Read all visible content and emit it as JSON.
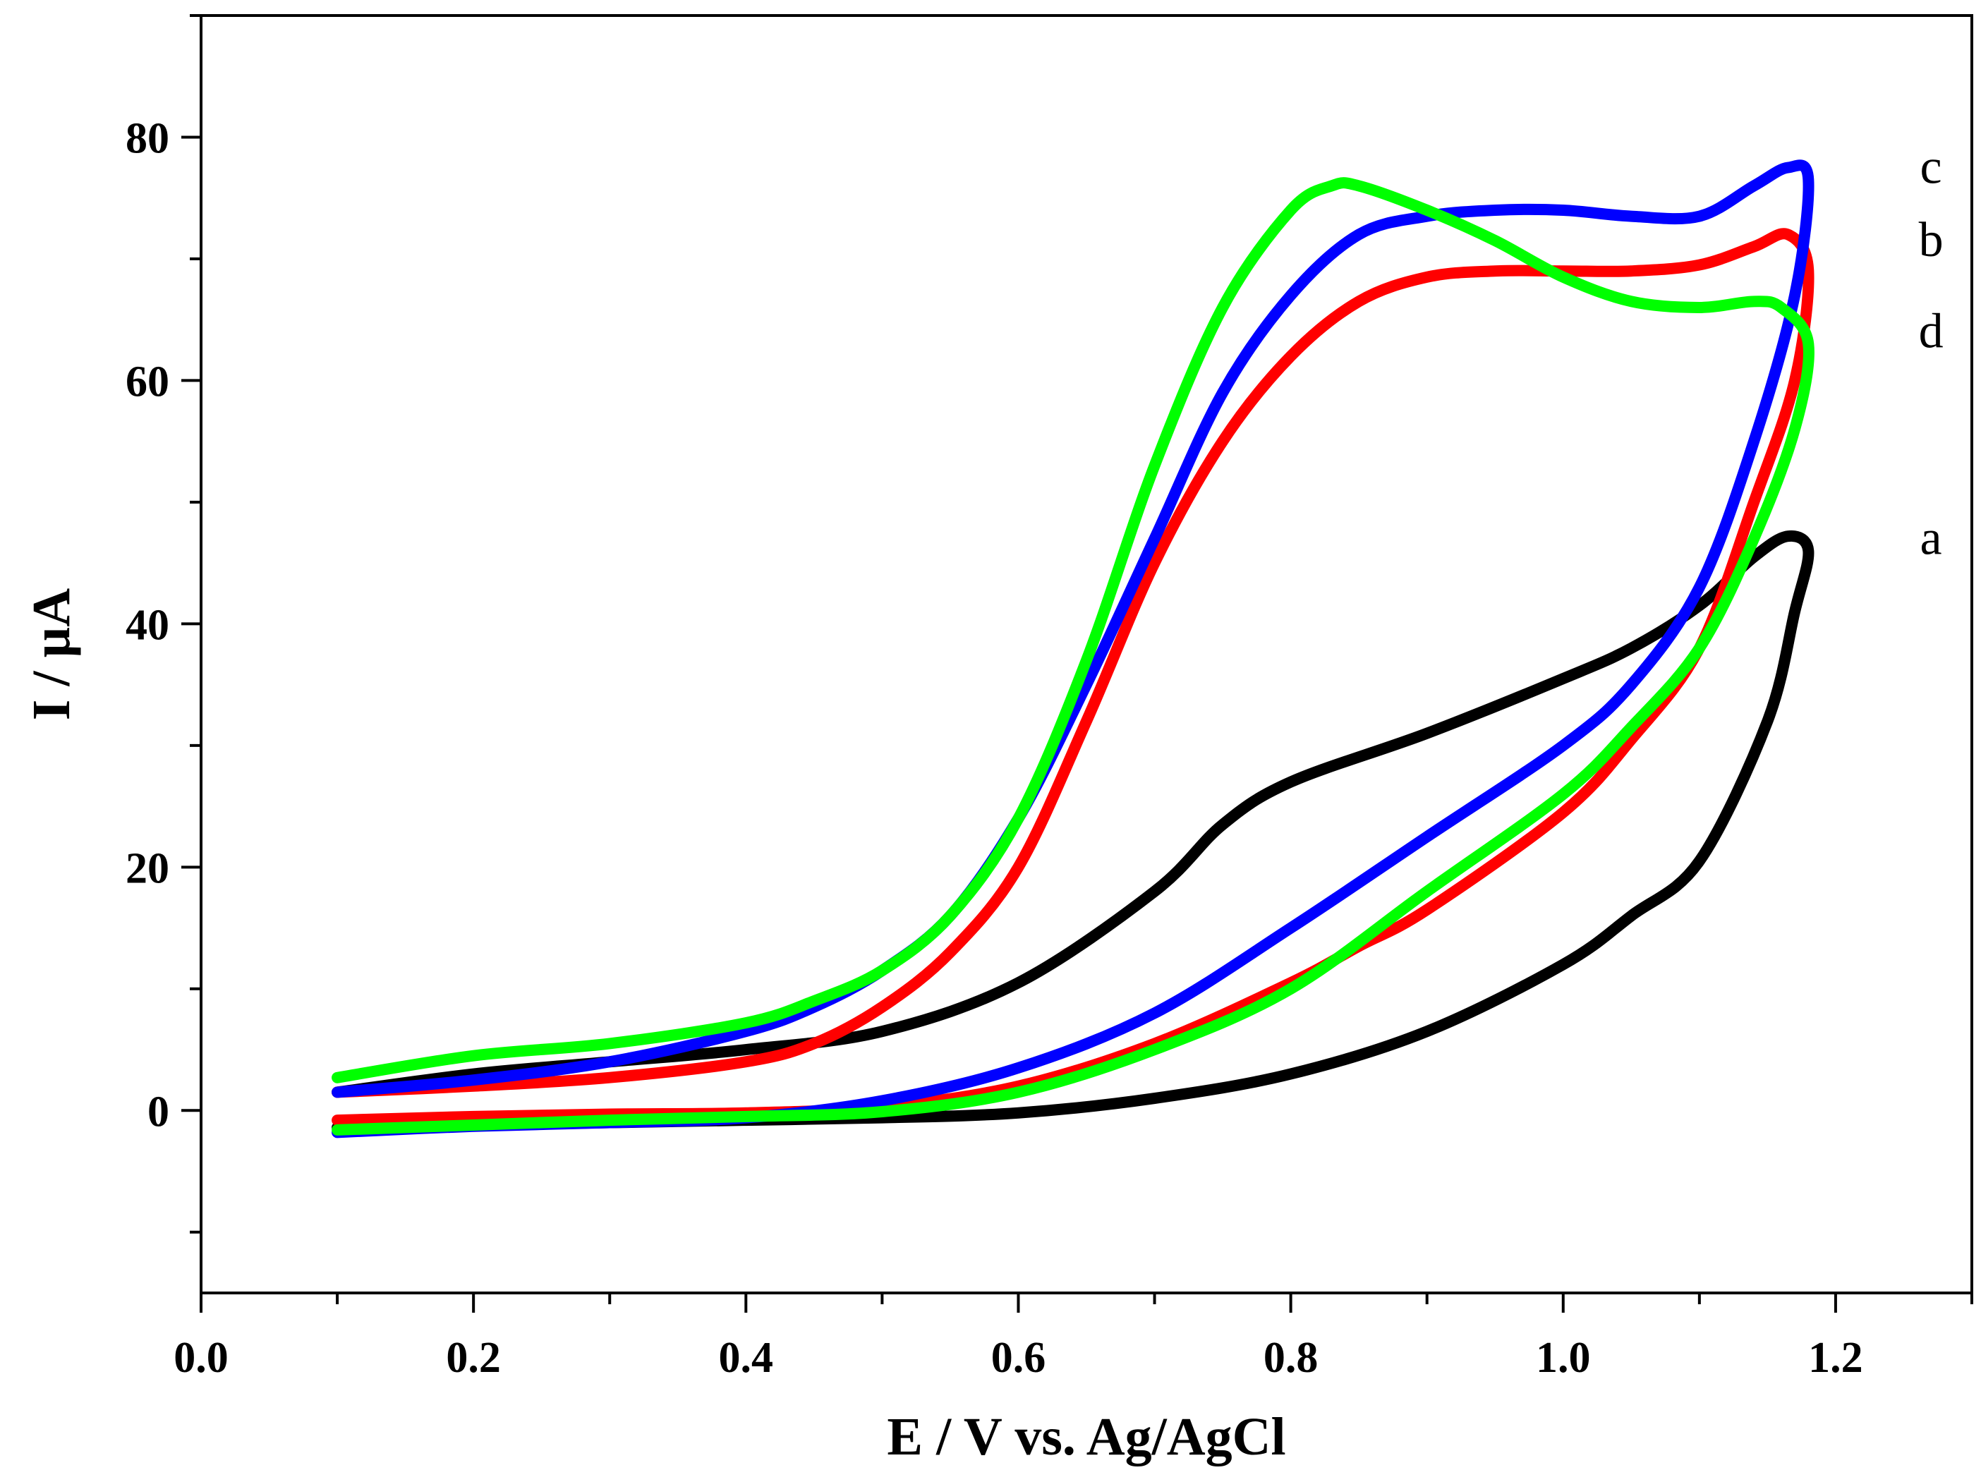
{
  "chart_data": {
    "type": "line",
    "title": "",
    "xlabel": "E / V vs. Ag/AgCl",
    "ylabel": "I / µA",
    "xlim": [
      0.0,
      1.3
    ],
    "ylim": [
      -15,
      90
    ],
    "x_ticks": [
      0.0,
      0.2,
      0.4,
      0.6,
      0.8,
      1.0,
      1.2
    ],
    "x_tick_labels": [
      "0.0",
      "0.2",
      "0.4",
      "0.6",
      "0.8",
      "1.0",
      "1.2"
    ],
    "y_ticks": [
      0,
      20,
      40,
      60,
      80
    ],
    "y_tick_labels": [
      "0",
      "20",
      "40",
      "60",
      "80"
    ],
    "grid": false,
    "series": [
      {
        "name": "a",
        "color": "#000000",
        "x": [
          0.1,
          0.2,
          0.3,
          0.4,
          0.5,
          0.6,
          0.7,
          0.75,
          0.8,
          0.9,
          1.0,
          1.05,
          1.1,
          1.14,
          1.165,
          1.18,
          1.17,
          1.15,
          1.1,
          1.05,
          1.0,
          0.9,
          0.8,
          0.7,
          0.6,
          0.5,
          0.4,
          0.3,
          0.2,
          0.1
        ],
        "y": [
          1.5,
          3.0,
          4.0,
          5.0,
          6.5,
          10.5,
          18.0,
          23.5,
          27.0,
          31.0,
          35.5,
          38.0,
          41.5,
          45.5,
          47.2,
          46.0,
          41.0,
          32.0,
          20.5,
          16.0,
          12.0,
          6.5,
          3.0,
          1.0,
          -0.2,
          -0.6,
          -0.8,
          -1.0,
          -1.2,
          -1.4
        ]
      },
      {
        "name": "b",
        "color": "#ff0000",
        "x": [
          0.1,
          0.2,
          0.3,
          0.4,
          0.45,
          0.5,
          0.55,
          0.6,
          0.65,
          0.7,
          0.75,
          0.8,
          0.85,
          0.9,
          0.95,
          1.0,
          1.05,
          1.1,
          1.14,
          1.165,
          1.18,
          1.17,
          1.14,
          1.1,
          1.05,
          1.0,
          0.9,
          0.85,
          0.8,
          0.7,
          0.6,
          0.5,
          0.4,
          0.3,
          0.2,
          0.1
        ],
        "y": [
          1.5,
          2.0,
          2.7,
          4.0,
          5.5,
          8.5,
          13.0,
          20.0,
          32.0,
          45.0,
          55.0,
          62.0,
          66.5,
          68.5,
          69.0,
          69.0,
          69.0,
          69.5,
          71.0,
          72.0,
          69.0,
          60.0,
          50.0,
          38.0,
          30.5,
          24.5,
          16.5,
          13.5,
          10.5,
          5.5,
          2.0,
          0.3,
          -0.2,
          -0.3,
          -0.5,
          -0.8
        ]
      },
      {
        "name": "c",
        "color": "#0000ff",
        "x": [
          0.1,
          0.2,
          0.3,
          0.4,
          0.45,
          0.5,
          0.55,
          0.6,
          0.65,
          0.7,
          0.75,
          0.8,
          0.85,
          0.9,
          0.95,
          1.0,
          1.05,
          1.1,
          1.14,
          1.165,
          1.18,
          1.17,
          1.14,
          1.1,
          1.05,
          1.0,
          0.9,
          0.8,
          0.7,
          0.6,
          0.5,
          0.4,
          0.3,
          0.2,
          0.1
        ],
        "y": [
          1.5,
          2.5,
          4.0,
          6.5,
          8.5,
          11.5,
          16.0,
          24.0,
          35.0,
          47.0,
          59.0,
          67.0,
          72.0,
          73.5,
          74.0,
          74.0,
          73.5,
          73.5,
          76.0,
          77.5,
          76.5,
          67.0,
          55.0,
          43.0,
          35.0,
          30.0,
          22.5,
          15.0,
          8.0,
          3.5,
          0.8,
          -0.6,
          -1.0,
          -1.3,
          -1.8
        ]
      },
      {
        "name": "d",
        "color": "#00ff00",
        "x": [
          0.1,
          0.2,
          0.3,
          0.4,
          0.45,
          0.5,
          0.55,
          0.6,
          0.65,
          0.7,
          0.75,
          0.8,
          0.83,
          0.85,
          0.9,
          0.95,
          1.0,
          1.05,
          1.1,
          1.14,
          1.16,
          1.18,
          1.17,
          1.14,
          1.1,
          1.05,
          1.0,
          0.9,
          0.8,
          0.7,
          0.6,
          0.5,
          0.4,
          0.3,
          0.2,
          0.1
        ],
        "y": [
          2.7,
          4.5,
          5.5,
          7.2,
          9.0,
          11.5,
          16.0,
          24.0,
          37.0,
          53.0,
          66.0,
          74.0,
          76.0,
          76.0,
          74.0,
          71.5,
          68.5,
          66.5,
          66.0,
          66.5,
          66.0,
          63.0,
          56.0,
          47.0,
          38.0,
          31.5,
          26.0,
          18.0,
          10.0,
          5.0,
          1.5,
          -0.1,
          -0.5,
          -0.8,
          -1.2,
          -1.6
        ]
      }
    ],
    "annotations": [
      {
        "text": "c",
        "x": 1.27,
        "y": 77.5
      },
      {
        "text": "b",
        "x": 1.27,
        "y": 71.5
      },
      {
        "text": "d",
        "x": 1.27,
        "y": 64.0
      },
      {
        "text": "a",
        "x": 1.27,
        "y": 47.0
      }
    ]
  }
}
